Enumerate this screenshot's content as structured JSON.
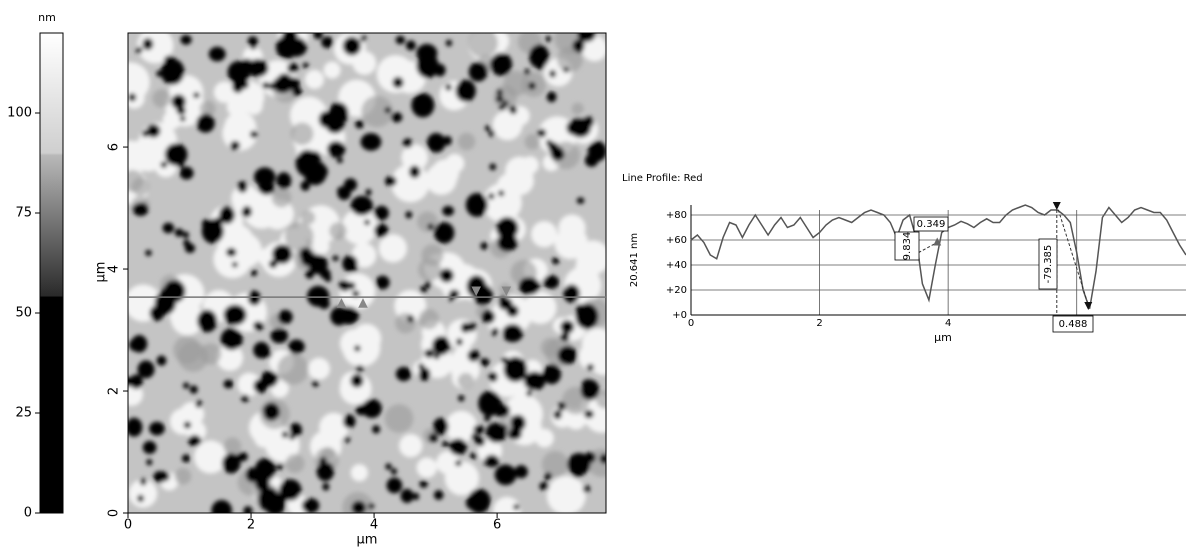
{
  "chart_data": [
    {
      "type": "colorbar",
      "title": "nm",
      "ylim": [
        0,
        120
      ],
      "yticks": [
        0,
        25,
        50,
        75,
        100
      ]
    },
    {
      "type": "image",
      "xlabel": "μm",
      "ylabel": "μm",
      "xlim": [
        0,
        7.77
      ],
      "ylim": [
        0,
        7.87
      ],
      "xticks": [
        0,
        2,
        4,
        6
      ],
      "yticks": [
        0,
        2,
        4,
        6
      ],
      "profile_y": 3.54,
      "cursors": {
        "x": [
          3.47,
          3.82,
          5.66,
          6.15
        ],
        "color": [
          "#888888",
          "#888888",
          "#888888",
          "#888888"
        ],
        "direction": [
          "up",
          "up",
          "down",
          "down"
        ]
      }
    },
    {
      "type": "line",
      "title": "Line Profile: Red",
      "ylabel": "20.641 nm",
      "xlabel": "μm",
      "xlim": [
        0,
        7.7
      ],
      "ylim": [
        0,
        88
      ],
      "color": "#555555",
      "grid": true,
      "xticks": [
        0,
        2,
        4,
        {
          "value": 6,
          "label": null
        }
      ],
      "yticks": [
        {
          "value": 0,
          "label": "+0"
        },
        {
          "value": 20,
          "label": "+20"
        },
        {
          "value": 40,
          "label": "+40"
        },
        {
          "value": 60,
          "label": "+60"
        },
        {
          "value": 80,
          "label": "+80"
        }
      ],
      "x": [
        0,
        0.1,
        0.2,
        0.3,
        0.4,
        0.5,
        0.6,
        0.7,
        0.8,
        0.9,
        1.0,
        1.1,
        1.2,
        1.3,
        1.4,
        1.5,
        1.6,
        1.7,
        1.8,
        1.9,
        2.0,
        2.1,
        2.2,
        2.3,
        2.4,
        2.5,
        2.6,
        2.7,
        2.8,
        2.9,
        3.0,
        3.1,
        3.2,
        3.3,
        3.4,
        3.5,
        3.6,
        3.7,
        3.8,
        3.9,
        4.0,
        4.1,
        4.2,
        4.3,
        4.4,
        4.5,
        4.6,
        4.7,
        4.8,
        4.9,
        5.0,
        5.1,
        5.2,
        5.3,
        5.4,
        5.5,
        5.6,
        5.7,
        5.8,
        5.9,
        6.0,
        6.1,
        6.2,
        6.3,
        6.4,
        6.5,
        6.6,
        6.7,
        6.8,
        6.9,
        7.0,
        7.1,
        7.2,
        7.3,
        7.4,
        7.5,
        7.6,
        7.7
      ],
      "values": [
        60,
        64,
        58,
        48,
        45,
        62,
        74,
        72,
        62,
        72,
        80,
        72,
        64,
        72,
        78,
        70,
        72,
        78,
        70,
        62,
        66,
        72,
        76,
        78,
        76,
        74,
        78,
        82,
        84,
        82,
        80,
        74,
        62,
        76,
        80,
        62,
        25,
        12,
        40,
        66,
        70,
        72,
        75,
        73,
        70,
        74,
        77,
        74,
        74,
        80,
        84,
        86,
        88,
        86,
        82,
        80,
        84,
        84,
        80,
        74,
        50,
        20,
        5,
        35,
        78,
        86,
        80,
        74,
        78,
        84,
        86,
        84,
        82,
        82,
        76,
        66,
        56,
        48
      ],
      "cursors": {
        "x": [
          3.47,
          3.83,
          5.69,
          6.18
        ],
        "y": [
          48,
          58,
          88,
          8
        ],
        "direction": [
          "up",
          "up",
          "down",
          "down"
        ]
      },
      "annotations": [
        "9.834",
        "0.349",
        "-79.385",
        "0.488"
      ]
    }
  ]
}
